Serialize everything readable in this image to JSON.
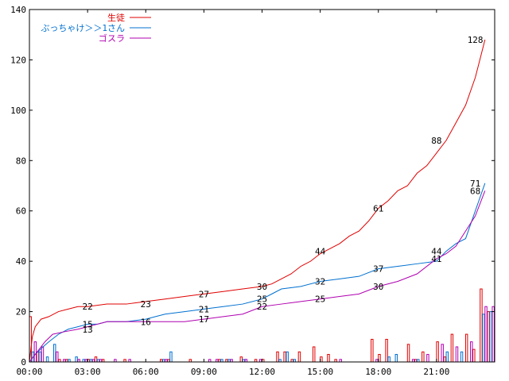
{
  "chart_data": {
    "type": "line",
    "x_ticks": [
      "00:00",
      "03:00",
      "06:00",
      "09:00",
      "12:00",
      "15:00",
      "18:00",
      "21:00"
    ],
    "y_ticks": [
      "0",
      "20",
      "40",
      "60",
      "80",
      "100",
      "120",
      "140"
    ],
    "xlim_hours": [
      0,
      23.5
    ],
    "ylim": [
      0,
      140
    ],
    "grid": false,
    "legend_position": "top-left",
    "series": [
      {
        "name": "生徒",
        "color": "#e00000",
        "cumulative": [
          [
            0,
            0
          ],
          [
            0.15,
            10
          ],
          [
            0.3,
            14
          ],
          [
            0.6,
            17
          ],
          [
            1,
            18
          ],
          [
            1.5,
            20
          ],
          [
            2,
            21
          ],
          [
            2.5,
            22
          ],
          [
            3,
            22
          ],
          [
            4,
            23
          ],
          [
            5,
            23
          ],
          [
            6,
            24
          ],
          [
            7,
            25
          ],
          [
            8,
            26
          ],
          [
            9,
            27
          ],
          [
            10,
            28
          ],
          [
            11,
            29
          ],
          [
            12,
            30
          ],
          [
            12.5,
            31
          ],
          [
            13,
            33
          ],
          [
            13.5,
            35
          ],
          [
            14,
            38
          ],
          [
            14.5,
            40
          ],
          [
            15,
            43
          ],
          [
            15.5,
            45
          ],
          [
            16,
            47
          ],
          [
            16.5,
            50
          ],
          [
            17,
            52
          ],
          [
            17.5,
            56
          ],
          [
            18,
            61
          ],
          [
            18.5,
            64
          ],
          [
            19,
            68
          ],
          [
            19.5,
            70
          ],
          [
            20,
            75
          ],
          [
            20.5,
            78
          ],
          [
            21,
            83
          ],
          [
            21.5,
            88
          ],
          [
            22,
            95
          ],
          [
            22.5,
            102
          ],
          [
            23,
            113
          ],
          [
            23.3,
            122
          ],
          [
            23.5,
            128
          ]
        ],
        "labels": [
          [
            3,
            22
          ],
          [
            6,
            23
          ],
          [
            9,
            27
          ],
          [
            12,
            30
          ],
          [
            15,
            44
          ],
          [
            18,
            61
          ],
          [
            21,
            88
          ],
          [
            23,
            128
          ]
        ],
        "bars": [
          18,
          4,
          0,
          0,
          1,
          1,
          0,
          0,
          1,
          2,
          1,
          0,
          0,
          1,
          0,
          0,
          0,
          0,
          1,
          1,
          0,
          0,
          1,
          0,
          0,
          0,
          1,
          1,
          0,
          2,
          0,
          1,
          1,
          0,
          4,
          4,
          1,
          4,
          0,
          6,
          2,
          3,
          1,
          0,
          0,
          0,
          0,
          9,
          3,
          9,
          0,
          0,
          7,
          1,
          4,
          0,
          8,
          2,
          11,
          0,
          11,
          5,
          29,
          20
        ]
      },
      {
        "name": "ぶっちゃけ＞＞1さん",
        "color": "#0070d0",
        "cumulative": [
          [
            0,
            0
          ],
          [
            0.3,
            3
          ],
          [
            0.7,
            6
          ],
          [
            1,
            8
          ],
          [
            1.5,
            11
          ],
          [
            2,
            13
          ],
          [
            2.5,
            14
          ],
          [
            3,
            15
          ],
          [
            3.5,
            15
          ],
          [
            4,
            16
          ],
          [
            5,
            16
          ],
          [
            6,
            17
          ],
          [
            6.5,
            18
          ],
          [
            7,
            19
          ],
          [
            8,
            20
          ],
          [
            9,
            21
          ],
          [
            10,
            22
          ],
          [
            11,
            23
          ],
          [
            12,
            25
          ],
          [
            12.5,
            27
          ],
          [
            13,
            29
          ],
          [
            14,
            30
          ],
          [
            15,
            32
          ],
          [
            16,
            33
          ],
          [
            17,
            34
          ],
          [
            18,
            37
          ],
          [
            19,
            38
          ],
          [
            20,
            39
          ],
          [
            21,
            40
          ],
          [
            21.5,
            44
          ],
          [
            22,
            47
          ],
          [
            22.5,
            49
          ],
          [
            23,
            60
          ],
          [
            23.5,
            71
          ]
        ],
        "labels": [
          [
            3,
            15
          ],
          [
            9,
            21
          ],
          [
            12,
            25
          ],
          [
            15,
            32
          ],
          [
            18,
            37
          ],
          [
            21,
            44
          ],
          [
            23,
            71
          ]
        ],
        "bars": [
          4,
          4,
          2,
          7,
          0,
          1,
          2,
          1,
          1,
          1,
          0,
          0,
          0,
          0,
          0,
          0,
          0,
          0,
          1,
          4,
          0,
          0,
          0,
          0,
          0,
          0,
          1,
          1,
          0,
          1,
          0,
          0,
          0,
          0,
          1,
          4,
          1,
          0,
          0,
          0,
          0,
          0,
          0,
          0,
          0,
          0,
          0,
          0,
          0,
          2,
          3,
          0,
          0,
          1,
          0,
          0,
          0,
          4,
          0,
          4,
          0,
          0,
          19,
          20
        ]
      },
      {
        "name": "ゴスラ",
        "color": "#b000b0",
        "cumulative": [
          [
            0,
            0
          ],
          [
            0.4,
            4
          ],
          [
            0.8,
            8
          ],
          [
            1.2,
            11
          ],
          [
            1.8,
            12
          ],
          [
            2.5,
            13
          ],
          [
            3,
            14
          ],
          [
            3.5,
            15
          ],
          [
            4,
            16
          ],
          [
            5,
            16
          ],
          [
            6,
            16
          ],
          [
            7,
            16
          ],
          [
            8,
            16
          ],
          [
            9,
            17
          ],
          [
            10,
            18
          ],
          [
            11,
            19
          ],
          [
            12,
            22
          ],
          [
            13,
            23
          ],
          [
            14,
            24
          ],
          [
            15,
            25
          ],
          [
            16,
            26
          ],
          [
            17,
            27
          ],
          [
            18,
            30
          ],
          [
            19,
            32
          ],
          [
            20,
            35
          ],
          [
            21,
            41
          ],
          [
            21.5,
            43
          ],
          [
            22,
            46
          ],
          [
            22.5,
            52
          ],
          [
            23,
            58
          ],
          [
            23.5,
            68
          ]
        ],
        "labels": [
          [
            3,
            13
          ],
          [
            6,
            16
          ],
          [
            9,
            17
          ],
          [
            12,
            22
          ],
          [
            15,
            25
          ],
          [
            18,
            30
          ],
          [
            21,
            41
          ],
          [
            23,
            68
          ]
        ],
        "bars": [
          8,
          6,
          0,
          4,
          1,
          0,
          1,
          1,
          1,
          1,
          0,
          1,
          0,
          1,
          0,
          0,
          0,
          0,
          1,
          0,
          0,
          0,
          0,
          0,
          1,
          1,
          0,
          1,
          0,
          1,
          0,
          1,
          0,
          0,
          0,
          0,
          0,
          0,
          0,
          0,
          0,
          0,
          1,
          0,
          0,
          0,
          0,
          1,
          0,
          0,
          0,
          0,
          1,
          0,
          3,
          0,
          7,
          0,
          6,
          0,
          8,
          0,
          22,
          22
        ]
      }
    ]
  }
}
